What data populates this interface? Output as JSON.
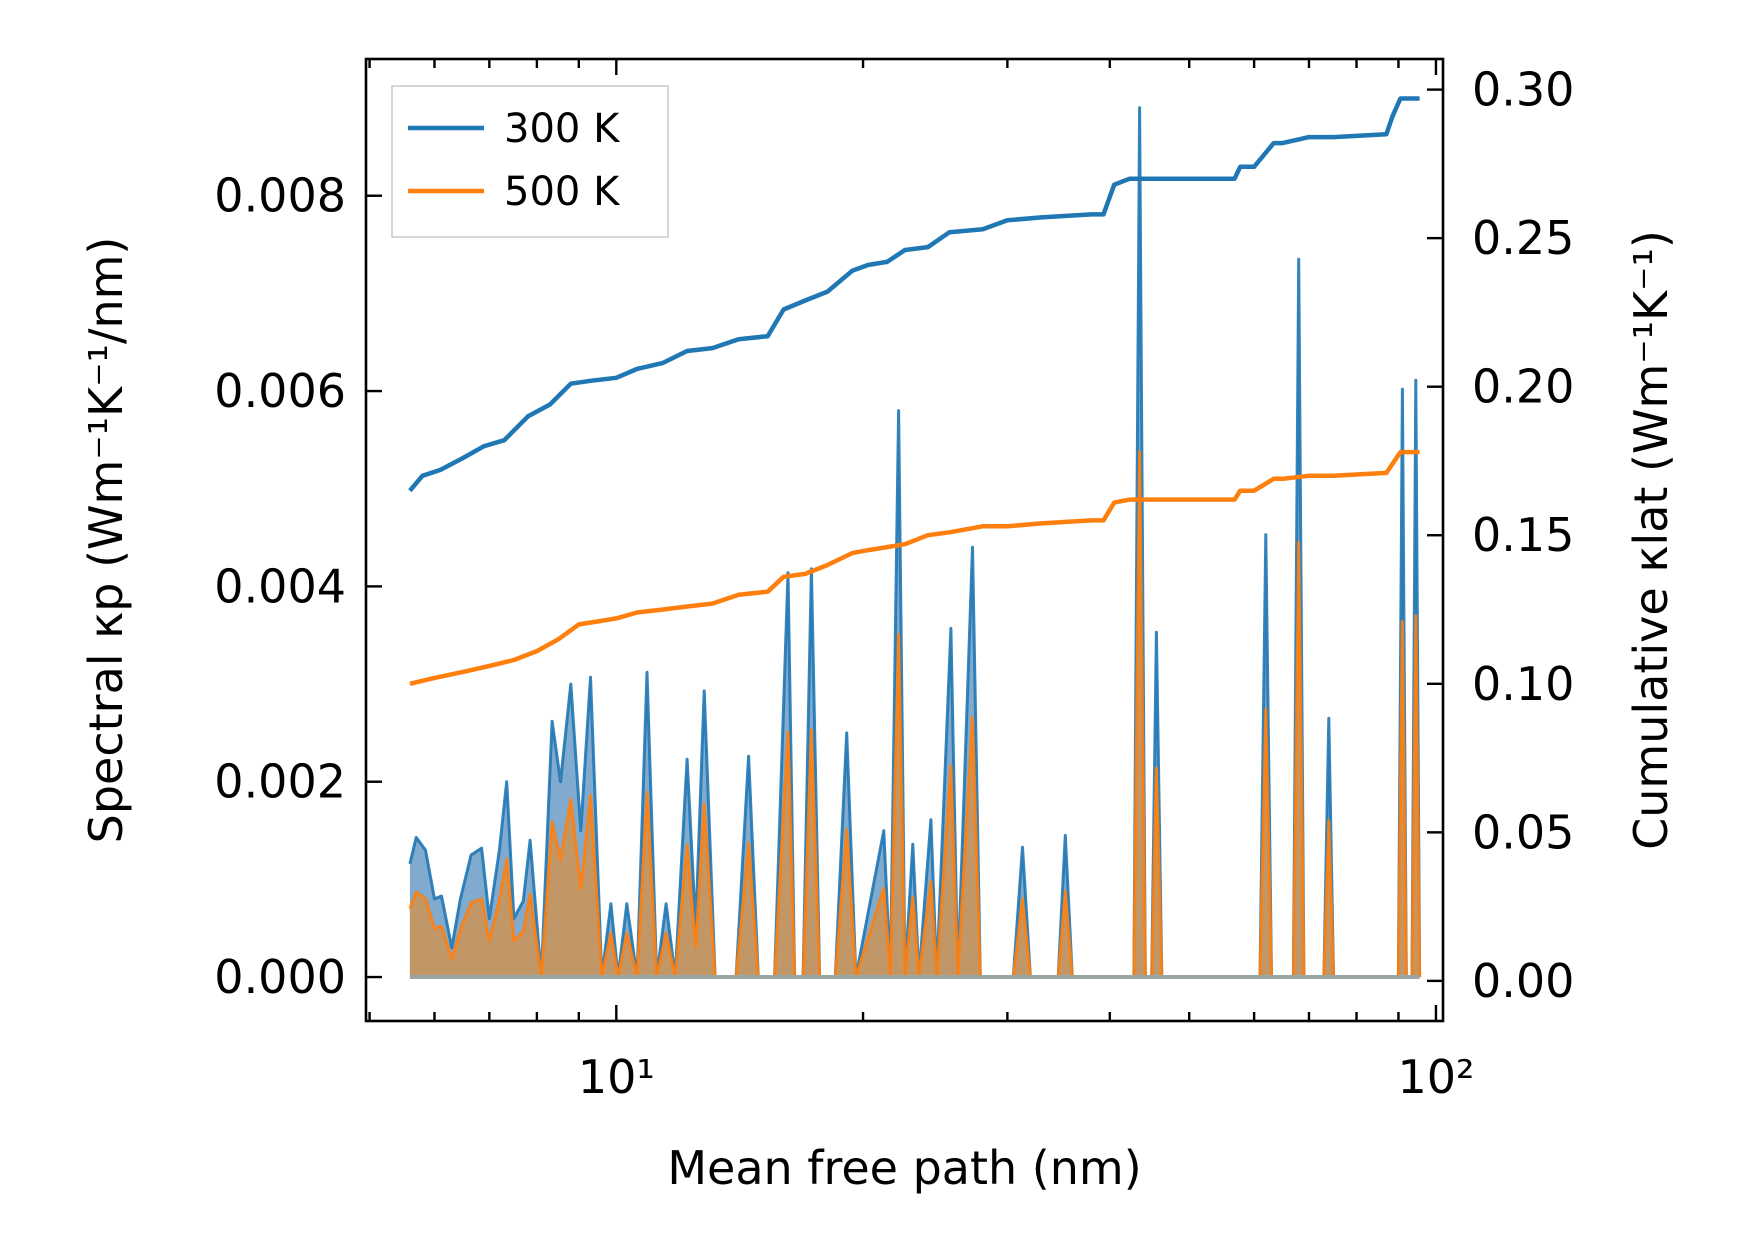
{
  "chart_data": {
    "type": "line",
    "xscale": "log",
    "xlabel": "Mean free path (nm)",
    "ylabel_left": "Spectral κp (Wm⁻¹K⁻¹/nm)",
    "ylabel_right": "Cumulative κlat (Wm⁻¹K⁻¹)",
    "xlim": [
      4.95,
      102
    ],
    "ylim_left": [
      -0.00045,
      0.0094
    ],
    "ylim_right": [
      -0.0135,
      0.3103
    ],
    "xticks": [
      {
        "value": 10,
        "label": "10¹"
      },
      {
        "value": 100,
        "label": "10²"
      }
    ],
    "yticks_left": [
      "0.000",
      "0.002",
      "0.004",
      "0.006",
      "0.008"
    ],
    "yticks_right": [
      "0.00",
      "0.05",
      "0.10",
      "0.15",
      "0.20",
      "0.25",
      "0.30"
    ],
    "legend": {
      "position": "top-left",
      "entries": [
        "300 K",
        "500 K"
      ]
    },
    "colors": {
      "c300": "#1f77b4",
      "c500": "#ff7f0e",
      "area300": "#6a9bc6",
      "area500": "#c89660"
    },
    "series": [
      {
        "name": "300 K cumulative",
        "axis": "right",
        "points": [
          [
            5.6,
            0.165
          ],
          [
            5.8,
            0.17
          ],
          [
            6.1,
            0.172
          ],
          [
            6.5,
            0.176
          ],
          [
            6.9,
            0.18
          ],
          [
            7.3,
            0.182
          ],
          [
            7.8,
            0.19
          ],
          [
            8.3,
            0.194
          ],
          [
            8.8,
            0.201
          ],
          [
            9.3,
            0.202
          ],
          [
            10.0,
            0.203
          ],
          [
            10.6,
            0.206
          ],
          [
            11.4,
            0.208
          ],
          [
            12.2,
            0.212
          ],
          [
            13.1,
            0.213
          ],
          [
            14.1,
            0.216
          ],
          [
            15.3,
            0.217
          ],
          [
            16.0,
            0.226
          ],
          [
            17.0,
            0.229
          ],
          [
            18.1,
            0.232
          ],
          [
            19.4,
            0.239
          ],
          [
            20.3,
            0.241
          ],
          [
            21.4,
            0.242
          ],
          [
            22.5,
            0.246
          ],
          [
            24.0,
            0.247
          ],
          [
            25.5,
            0.252
          ],
          [
            28.0,
            0.253
          ],
          [
            30.0,
            0.256
          ],
          [
            33.0,
            0.257
          ],
          [
            38.0,
            0.258
          ],
          [
            39.3,
            0.258
          ],
          [
            40.5,
            0.268
          ],
          [
            42.3,
            0.27
          ],
          [
            50.0,
            0.27
          ],
          [
            56.8,
            0.27
          ],
          [
            57.7,
            0.274
          ],
          [
            60.0,
            0.274
          ],
          [
            63.4,
            0.282
          ],
          [
            65.0,
            0.282
          ],
          [
            70.0,
            0.284
          ],
          [
            75.0,
            0.284
          ],
          [
            87.0,
            0.285
          ],
          [
            88.5,
            0.291
          ],
          [
            90.5,
            0.297
          ],
          [
            95.5,
            0.297
          ]
        ]
      },
      {
        "name": "500 K cumulative",
        "axis": "right",
        "points": [
          [
            5.6,
            0.1
          ],
          [
            6.0,
            0.102
          ],
          [
            6.5,
            0.104
          ],
          [
            7.0,
            0.106
          ],
          [
            7.5,
            0.108
          ],
          [
            8.0,
            0.111
          ],
          [
            8.5,
            0.115
          ],
          [
            9.0,
            0.12
          ],
          [
            9.5,
            0.121
          ],
          [
            10.0,
            0.122
          ],
          [
            10.6,
            0.124
          ],
          [
            11.4,
            0.125
          ],
          [
            12.2,
            0.126
          ],
          [
            13.1,
            0.127
          ],
          [
            14.1,
            0.13
          ],
          [
            15.3,
            0.131
          ],
          [
            16.0,
            0.136
          ],
          [
            17.0,
            0.137
          ],
          [
            18.1,
            0.14
          ],
          [
            19.4,
            0.144
          ],
          [
            20.3,
            0.145
          ],
          [
            21.4,
            0.146
          ],
          [
            22.5,
            0.147
          ],
          [
            24.0,
            0.15
          ],
          [
            25.5,
            0.151
          ],
          [
            28.0,
            0.153
          ],
          [
            30.0,
            0.153
          ],
          [
            33.0,
            0.154
          ],
          [
            38.0,
            0.155
          ],
          [
            39.3,
            0.155
          ],
          [
            40.5,
            0.161
          ],
          [
            42.3,
            0.162
          ],
          [
            50.0,
            0.162
          ],
          [
            56.8,
            0.162
          ],
          [
            57.7,
            0.165
          ],
          [
            60.0,
            0.165
          ],
          [
            63.4,
            0.169
          ],
          [
            65.0,
            0.169
          ],
          [
            70.0,
            0.17
          ],
          [
            75.0,
            0.17
          ],
          [
            87.0,
            0.171
          ],
          [
            88.5,
            0.174
          ],
          [
            90.5,
            0.178
          ],
          [
            95.5,
            0.178
          ]
        ]
      },
      {
        "name": "300 K spectral",
        "axis": "left",
        "points": [
          [
            5.6,
            0.00116
          ],
          [
            5.7,
            0.00143
          ],
          [
            5.85,
            0.0013
          ],
          [
            6.0,
            0.0008
          ],
          [
            6.12,
            0.00083
          ],
          [
            6.3,
            0.0003
          ],
          [
            6.45,
            0.00079
          ],
          [
            6.65,
            0.00125
          ],
          [
            6.85,
            0.00132
          ],
          [
            7.0,
            0.0006
          ],
          [
            7.2,
            0.0013
          ],
          [
            7.35,
            0.002
          ],
          [
            7.5,
            0.0006
          ],
          [
            7.7,
            0.00078
          ],
          [
            7.85,
            0.0014
          ],
          [
            8.1,
            0.0
          ],
          [
            8.35,
            0.00262
          ],
          [
            8.55,
            0.002
          ],
          [
            8.8,
            0.003
          ],
          [
            9.05,
            0.0015
          ],
          [
            9.3,
            0.00307
          ],
          [
            9.6,
            0.0
          ],
          [
            9.85,
            0.00075
          ],
          [
            10.05,
            0.0
          ],
          [
            10.3,
            0.00075
          ],
          [
            10.6,
            0.0
          ],
          [
            10.9,
            0.00312
          ],
          [
            11.2,
            0.0
          ],
          [
            11.5,
            0.00075
          ],
          [
            11.8,
            0.0
          ],
          [
            12.2,
            0.00223
          ],
          [
            12.5,
            0.0005
          ],
          [
            12.8,
            0.00293
          ],
          [
            13.2,
            0.0
          ],
          [
            14.0,
            0.0
          ],
          [
            14.5,
            0.00226
          ],
          [
            14.9,
            0.0
          ],
          [
            15.6,
            0.0
          ],
          [
            16.2,
            0.00414
          ],
          [
            16.5,
            0.0
          ],
          [
            16.9,
            0.0
          ],
          [
            17.3,
            0.00418
          ],
          [
            17.7,
            0.0
          ],
          [
            18.5,
            0.0
          ],
          [
            19.1,
            0.0025
          ],
          [
            19.6,
            0.0
          ],
          [
            21.2,
            0.0015
          ],
          [
            21.6,
            0.0
          ],
          [
            22.1,
            0.0058
          ],
          [
            22.5,
            0.0
          ],
          [
            23.0,
            0.00136
          ],
          [
            23.4,
            0.0
          ],
          [
            24.2,
            0.00161
          ],
          [
            24.6,
            0.0
          ],
          [
            25.6,
            0.00357
          ],
          [
            26.1,
            0.0
          ],
          [
            27.2,
            0.0044
          ],
          [
            27.8,
            0.0
          ],
          [
            30.5,
            0.0
          ],
          [
            31.3,
            0.00133
          ],
          [
            32.0,
            0.0
          ],
          [
            34.6,
            0.0
          ],
          [
            35.3,
            0.00145
          ],
          [
            36.0,
            0.0
          ],
          [
            42.8,
            0.0
          ],
          [
            43.5,
            0.0089
          ],
          [
            44.2,
            0.0
          ],
          [
            45.0,
            0.0
          ],
          [
            45.6,
            0.00353
          ],
          [
            46.3,
            0.0
          ],
          [
            61.0,
            0.0
          ],
          [
            62.0,
            0.00453
          ],
          [
            63.0,
            0.0
          ],
          [
            67.0,
            0.0
          ],
          [
            68.0,
            0.00735
          ],
          [
            69.0,
            0.0
          ],
          [
            73.0,
            0.0
          ],
          [
            74.0,
            0.00265
          ],
          [
            75.0,
            0.0
          ],
          [
            90.0,
            0.0
          ],
          [
            91.0,
            0.00602
          ],
          [
            92.0,
            0.0
          ],
          [
            93.5,
            0.0
          ],
          [
            94.5,
            0.00611
          ],
          [
            95.5,
            0.0
          ]
        ]
      },
      {
        "name": "500 K spectral",
        "axis": "left",
        "points": [
          [
            5.6,
            0.0007
          ],
          [
            5.7,
            0.00087
          ],
          [
            5.85,
            0.0008
          ],
          [
            6.0,
            0.0005
          ],
          [
            6.12,
            0.00052
          ],
          [
            6.3,
            0.00018
          ],
          [
            6.45,
            0.00048
          ],
          [
            6.65,
            0.00076
          ],
          [
            6.85,
            0.0008
          ],
          [
            7.0,
            0.00037
          ],
          [
            7.2,
            0.00079
          ],
          [
            7.35,
            0.00121
          ],
          [
            7.5,
            0.00037
          ],
          [
            7.7,
            0.00047
          ],
          [
            7.85,
            0.00085
          ],
          [
            8.1,
            0.0
          ],
          [
            8.35,
            0.00159
          ],
          [
            8.55,
            0.0012
          ],
          [
            8.8,
            0.00182
          ],
          [
            9.05,
            0.0009
          ],
          [
            9.3,
            0.00186
          ],
          [
            9.6,
            0.0
          ],
          [
            9.85,
            0.00045
          ],
          [
            10.05,
            0.0
          ],
          [
            10.3,
            0.00045
          ],
          [
            10.6,
            0.0
          ],
          [
            10.9,
            0.00189
          ],
          [
            11.2,
            0.0
          ],
          [
            11.5,
            0.00045
          ],
          [
            11.8,
            0.0
          ],
          [
            12.2,
            0.00135
          ],
          [
            12.5,
            0.0003
          ],
          [
            12.8,
            0.00177
          ],
          [
            13.2,
            0.0
          ],
          [
            14.0,
            0.0
          ],
          [
            14.5,
            0.00137
          ],
          [
            14.9,
            0.0
          ],
          [
            15.6,
            0.0
          ],
          [
            16.2,
            0.00251
          ],
          [
            16.5,
            0.0
          ],
          [
            16.9,
            0.0
          ],
          [
            17.3,
            0.00253
          ],
          [
            17.7,
            0.0
          ],
          [
            18.5,
            0.0
          ],
          [
            19.1,
            0.00151
          ],
          [
            19.6,
            0.0
          ],
          [
            21.2,
            0.00091
          ],
          [
            21.6,
            0.0
          ],
          [
            22.1,
            0.00351
          ],
          [
            22.5,
            0.0
          ],
          [
            23.0,
            0.00082
          ],
          [
            23.4,
            0.0
          ],
          [
            24.2,
            0.00098
          ],
          [
            24.6,
            0.0
          ],
          [
            25.6,
            0.00216
          ],
          [
            26.1,
            0.0
          ],
          [
            27.2,
            0.00266
          ],
          [
            27.8,
            0.0
          ],
          [
            30.5,
            0.0
          ],
          [
            31.3,
            0.0008
          ],
          [
            32.0,
            0.0
          ],
          [
            34.6,
            0.0
          ],
          [
            35.3,
            0.00088
          ],
          [
            36.0,
            0.0
          ],
          [
            42.8,
            0.0
          ],
          [
            43.5,
            0.00538
          ],
          [
            44.2,
            0.0
          ],
          [
            45.0,
            0.0
          ],
          [
            45.6,
            0.00214
          ],
          [
            46.3,
            0.0
          ],
          [
            61.0,
            0.0
          ],
          [
            62.0,
            0.00274
          ],
          [
            63.0,
            0.0
          ],
          [
            67.0,
            0.0
          ],
          [
            68.0,
            0.00445
          ],
          [
            69.0,
            0.0
          ],
          [
            73.0,
            0.0
          ],
          [
            74.0,
            0.0016
          ],
          [
            75.0,
            0.0
          ],
          [
            90.0,
            0.0
          ],
          [
            91.0,
            0.00364
          ],
          [
            92.0,
            0.0
          ],
          [
            93.5,
            0.0
          ],
          [
            94.5,
            0.0037
          ],
          [
            95.5,
            0.0
          ]
        ]
      }
    ]
  }
}
